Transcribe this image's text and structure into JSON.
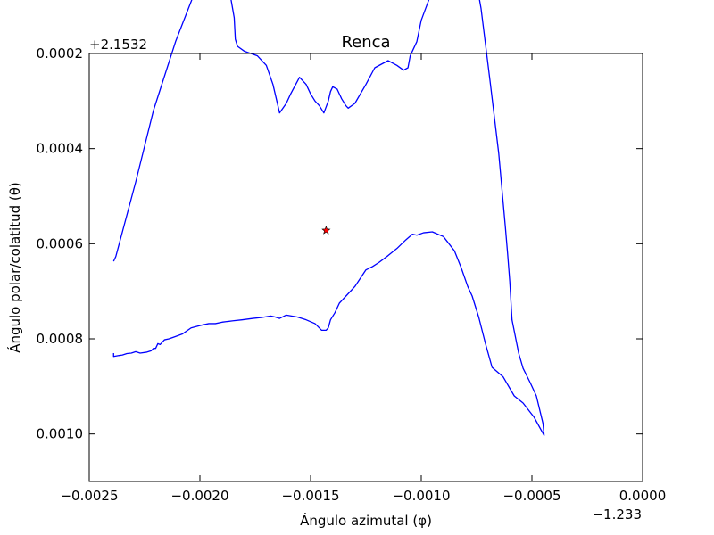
{
  "chart_data": {
    "type": "line",
    "title": "Renca",
    "xlabel": "Ángulo azimutal (φ)",
    "ylabel": "Ángulo polar/colatitud (θ)",
    "x_offset_label": "−1.233",
    "y_offset_label": "+2.1532",
    "xlim": [
      -0.0025,
      0.0
    ],
    "ylim_inverted": [
      0.0011,
      0.0002
    ],
    "xticks": [
      -0.0025,
      -0.002,
      -0.0015,
      -0.001,
      -0.0005,
      0.0
    ],
    "xtick_labels": [
      "−0.0025",
      "−0.0020",
      "−0.0015",
      "−0.0010",
      "−0.0005",
      "0.0000"
    ],
    "yticks": [
      0.0002,
      0.0004,
      0.0006,
      0.0008,
      0.001
    ],
    "ytick_labels": [
      "0.0002",
      "0.0004",
      "0.0006",
      "0.0008",
      "0.0010"
    ],
    "grid": false,
    "series": [
      {
        "color": "#0000ff",
        "x": [
          -0.00239,
          -0.00238,
          -0.00229,
          -0.00221,
          -0.00211,
          -0.00201,
          -0.001935,
          -0.0019,
          -0.00186,
          -0.001845,
          -0.00184,
          -0.00183,
          -0.0018,
          -0.00174,
          -0.0017,
          -0.00167,
          -0.00164,
          -0.00161,
          -0.00159,
          -0.00155,
          -0.00152,
          -0.0015,
          -0.00148,
          -0.00146,
          -0.00144,
          -0.00142,
          -0.00141,
          -0.0014,
          -0.00138,
          -0.00136,
          -0.00134,
          -0.00133,
          -0.0013,
          -0.00125,
          -0.00121,
          -0.00115,
          -0.00111,
          -0.00108,
          -0.00106,
          -0.00105,
          -0.00102,
          -0.001,
          -0.00098,
          -0.00096,
          -0.00093,
          -0.0009,
          -0.00086,
          -0.00084,
          -0.00081,
          -0.00077,
          -0.00073,
          -0.00069,
          -0.00065,
          -0.00062,
          -0.00061,
          -0.0006,
          -0.00059,
          -0.00056,
          -0.00054,
          -0.00051,
          -0.00048,
          -0.00045,
          -0.000445,
          -0.00049,
          -0.00054,
          -0.00058,
          -0.00063,
          -0.00068,
          -0.00071,
          -0.00074,
          -0.00077,
          -0.00079,
          -0.00082,
          -0.00085,
          -0.0009,
          -0.00095,
          -0.00099,
          -0.00102,
          -0.00104,
          -0.00107,
          -0.00111,
          -0.00115,
          -0.00119,
          -0.00122,
          -0.00125,
          -0.0013,
          -0.00134,
          -0.00137,
          -0.00139,
          -0.00141,
          -0.00142,
          -0.00143,
          -0.00145,
          -0.00148,
          -0.00152,
          -0.00156,
          -0.00161,
          -0.00164,
          -0.00166,
          -0.00168,
          -0.00172,
          -0.00176,
          -0.00181,
          -0.00185,
          -0.0019,
          -0.00193,
          -0.00196,
          -0.002,
          -0.00204,
          -0.00208,
          -0.00211,
          -0.00214,
          -0.00216,
          -0.00218,
          -0.00219,
          -0.0022,
          -0.00221,
          -0.00222,
          -0.00224,
          -0.00227,
          -0.00229,
          -0.00231,
          -0.00233,
          -0.00235,
          -0.002365,
          -0.00239,
          -0.00239
        ],
        "y": [
          0.000637,
          0.000627,
          0.00047,
          0.00032,
          0.000175,
          5.5e-05,
          -2.5e-05,
          3e-05,
          8.5e-05,
          0.000125,
          0.00017,
          0.000185,
          0.000195,
          0.000205,
          0.000225,
          0.000265,
          0.000325,
          0.000305,
          0.000285,
          0.00025,
          0.000265,
          0.000285,
          0.0003,
          0.00031,
          0.000325,
          0.0003,
          0.00028,
          0.00027,
          0.000275,
          0.000295,
          0.00031,
          0.000315,
          0.000305,
          0.000265,
          0.00023,
          0.000215,
          0.000225,
          0.000235,
          0.00023,
          0.000205,
          0.000175,
          0.00013,
          0.000105,
          8e-05,
          5.5e-05,
          2.5e-05,
          3.5e-05,
          1.5e-05,
          -2e-05,
          0.0,
          0.000105,
          0.000255,
          0.00041,
          0.000565,
          0.00062,
          0.00068,
          0.00076,
          0.00083,
          0.000862,
          0.00089,
          0.00092,
          0.000978,
          0.001003,
          0.000965,
          0.000935,
          0.00092,
          0.00088,
          0.00086,
          0.00081,
          0.000755,
          0.00071,
          0.00069,
          0.00065,
          0.000615,
          0.000585,
          0.000575,
          0.000577,
          0.000582,
          0.00058,
          0.000592,
          0.00061,
          0.000625,
          0.000639,
          0.000648,
          0.000655,
          0.00069,
          0.00071,
          0.000725,
          0.000745,
          0.00076,
          0.000777,
          0.000782,
          0.000782,
          0.000768,
          0.00076,
          0.000754,
          0.00075,
          0.000757,
          0.000754,
          0.000752,
          0.000755,
          0.000757,
          0.00076,
          0.000762,
          0.000765,
          0.000768,
          0.000768,
          0.000772,
          0.000777,
          0.00079,
          0.000795,
          0.0008,
          0.000802,
          0.000812,
          0.00081,
          0.00082,
          0.00082,
          0.000825,
          0.000828,
          0.00083,
          0.000827,
          0.00083,
          0.000831,
          0.000834,
          0.000835,
          0.000837,
          0.00083
        ]
      }
    ],
    "markers": [
      {
        "x": -0.00143,
        "y": 0.000572,
        "shape": "star",
        "color": "#ff0000"
      }
    ]
  }
}
